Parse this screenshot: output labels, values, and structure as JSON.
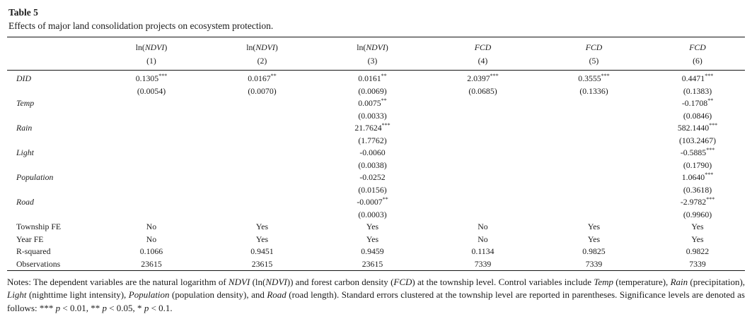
{
  "page": {
    "title": "Table 5",
    "subtitle": "Effects of major land consolidation projects on ecosystem protection."
  },
  "table": {
    "columns": [
      {
        "label": [
          {
            "t": "ln(",
            "i": false
          },
          {
            "t": "NDVI",
            "i": true
          },
          {
            "t": ")",
            "i": false
          }
        ],
        "num": "(1)"
      },
      {
        "label": [
          {
            "t": "ln(",
            "i": false
          },
          {
            "t": "NDVI",
            "i": true
          },
          {
            "t": ")",
            "i": false
          }
        ],
        "num": "(2)"
      },
      {
        "label": [
          {
            "t": "ln(",
            "i": false
          },
          {
            "t": "NDVI",
            "i": true
          },
          {
            "t": ")",
            "i": false
          }
        ],
        "num": "(3)"
      },
      {
        "label": [
          {
            "t": "FCD",
            "i": true
          }
        ],
        "num": "(4)"
      },
      {
        "label": [
          {
            "t": "FCD",
            "i": true
          }
        ],
        "num": "(5)"
      },
      {
        "label": [
          {
            "t": "FCD",
            "i": true
          }
        ],
        "num": "(6)"
      }
    ],
    "rows": [
      {
        "label": "DID",
        "italic": true,
        "coef": [
          "0.1305***",
          "0.0167**",
          "0.0161**",
          "2.0397***",
          "0.3555***",
          "0.4471***"
        ],
        "se": [
          "(0.0054)",
          "(0.0070)",
          "(0.0069)",
          "(0.0685)",
          "(0.1336)",
          "(0.1383)"
        ]
      },
      {
        "label": "Temp",
        "italic": true,
        "coef": [
          "",
          "",
          "0.0075**",
          "",
          "",
          "-0.1708**"
        ],
        "se": [
          "",
          "",
          "(0.0033)",
          "",
          "",
          "(0.0846)"
        ]
      },
      {
        "label": "Rain",
        "italic": true,
        "coef": [
          "",
          "",
          "21.7624***",
          "",
          "",
          "582.1440***"
        ],
        "se": [
          "",
          "",
          "(1.7762)",
          "",
          "",
          "(103.2467)"
        ]
      },
      {
        "label": "Light",
        "italic": true,
        "coef": [
          "",
          "",
          "-0.0060",
          "",
          "",
          "-0.5885***"
        ],
        "se": [
          "",
          "",
          "(0.0038)",
          "",
          "",
          "(0.1790)"
        ]
      },
      {
        "label": "Population",
        "italic": true,
        "coef": [
          "",
          "",
          "-0.0252",
          "",
          "",
          "1.0640***"
        ],
        "se": [
          "",
          "",
          "(0.0156)",
          "",
          "",
          "(0.3618)"
        ]
      },
      {
        "label": "Road",
        "italic": true,
        "coef": [
          "",
          "",
          "-0.0007**",
          "",
          "",
          "-2.9782***"
        ],
        "se": [
          "",
          "",
          "(0.0003)",
          "",
          "",
          "(0.9960)"
        ]
      },
      {
        "label": "Township FE",
        "italic": false,
        "coef": [
          "No",
          "Yes",
          "Yes",
          "No",
          "Yes",
          "Yes"
        ]
      },
      {
        "label": "Year FE",
        "italic": false,
        "coef": [
          "No",
          "Yes",
          "Yes",
          "No",
          "Yes",
          "Yes"
        ]
      },
      {
        "label": "R-squared",
        "italic": false,
        "coef": [
          "0.1066",
          "0.9451",
          "0.9459",
          "0.1134",
          "0.9825",
          "0.9822"
        ]
      },
      {
        "label": "Observations",
        "italic": false,
        "coef": [
          "23615",
          "23615",
          "23615",
          "7339",
          "7339",
          "7339"
        ]
      }
    ]
  },
  "notes": {
    "segments": [
      {
        "t": "Notes: The dependent variables are the natural logarithm of ",
        "i": false
      },
      {
        "t": "NDVI",
        "i": true
      },
      {
        "t": " (ln(",
        "i": false
      },
      {
        "t": "NDVI",
        "i": true
      },
      {
        "t": ")) and forest carbon density (",
        "i": false
      },
      {
        "t": "FCD",
        "i": true
      },
      {
        "t": ") at the township level. Control variables include ",
        "i": false
      },
      {
        "t": "Temp",
        "i": true
      },
      {
        "t": " (temperature), ",
        "i": false
      },
      {
        "t": "Rain",
        "i": true
      },
      {
        "t": " (precipitation), ",
        "i": false
      },
      {
        "t": "Light",
        "i": true
      },
      {
        "t": " (nighttime light intensity), ",
        "i": false
      },
      {
        "t": "Population",
        "i": true
      },
      {
        "t": " (population density), and ",
        "i": false
      },
      {
        "t": "Road",
        "i": true
      },
      {
        "t": " (road length). Standard errors clustered at the township level are reported in parentheses. Significance levels are denoted as follows: *** ",
        "i": false
      },
      {
        "t": "p",
        "i": true
      },
      {
        "t": " < 0.01, ** ",
        "i": false
      },
      {
        "t": "p",
        "i": true
      },
      {
        "t": " < 0.05, * ",
        "i": false
      },
      {
        "t": "p",
        "i": true
      },
      {
        "t": " < 0.1.",
        "i": false
      }
    ]
  }
}
